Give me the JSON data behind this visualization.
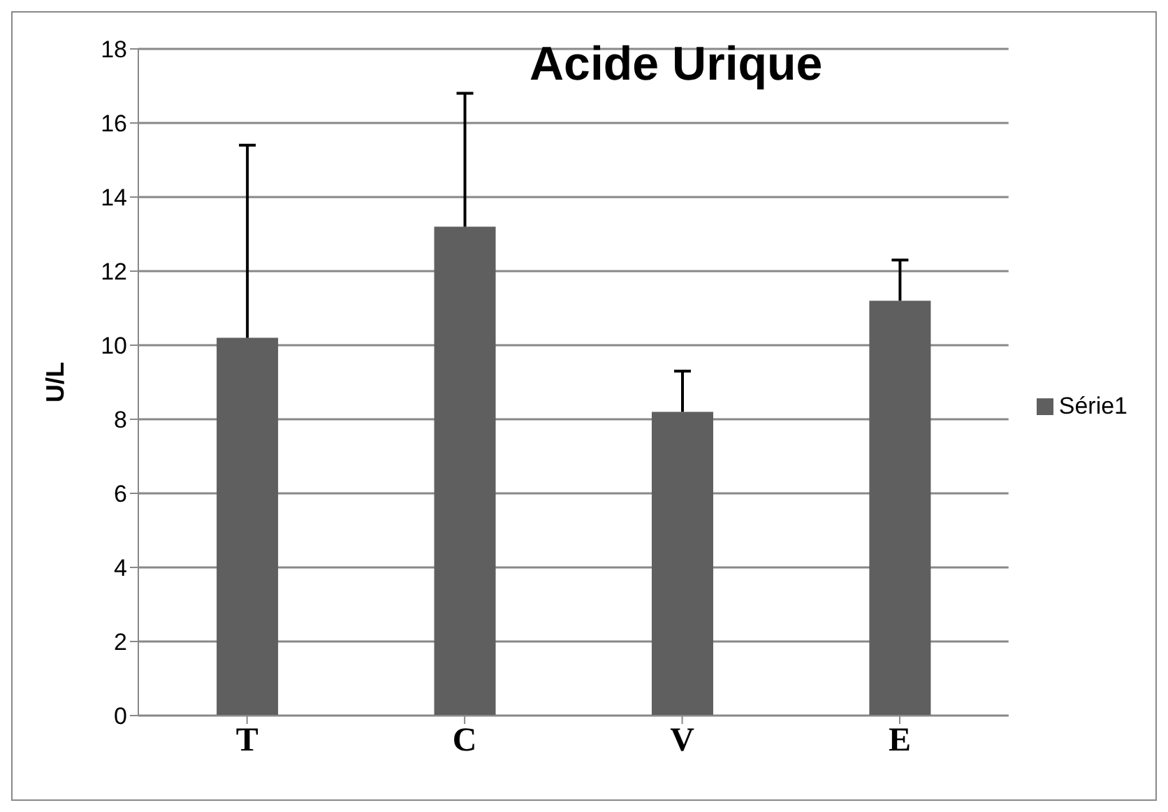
{
  "chart_data": {
    "type": "bar",
    "title": "Acide Urique",
    "ylabel": "U/L",
    "categories": [
      "T",
      "C",
      "V",
      "E"
    ],
    "series": [
      {
        "name": "Série1",
        "color": "#5f5f5f",
        "values": [
          10.2,
          13.2,
          8.2,
          11.2
        ],
        "errors": [
          [
            10.2,
            15.4
          ],
          [
            13.2,
            16.8
          ],
          [
            8.2,
            9.3
          ],
          [
            11.2,
            12.3
          ]
        ]
      }
    ],
    "ylim": [
      0,
      18
    ],
    "yticks": [
      0,
      2,
      4,
      6,
      8,
      10,
      12,
      14,
      16,
      18
    ],
    "grid": "y",
    "legend": "right"
  }
}
